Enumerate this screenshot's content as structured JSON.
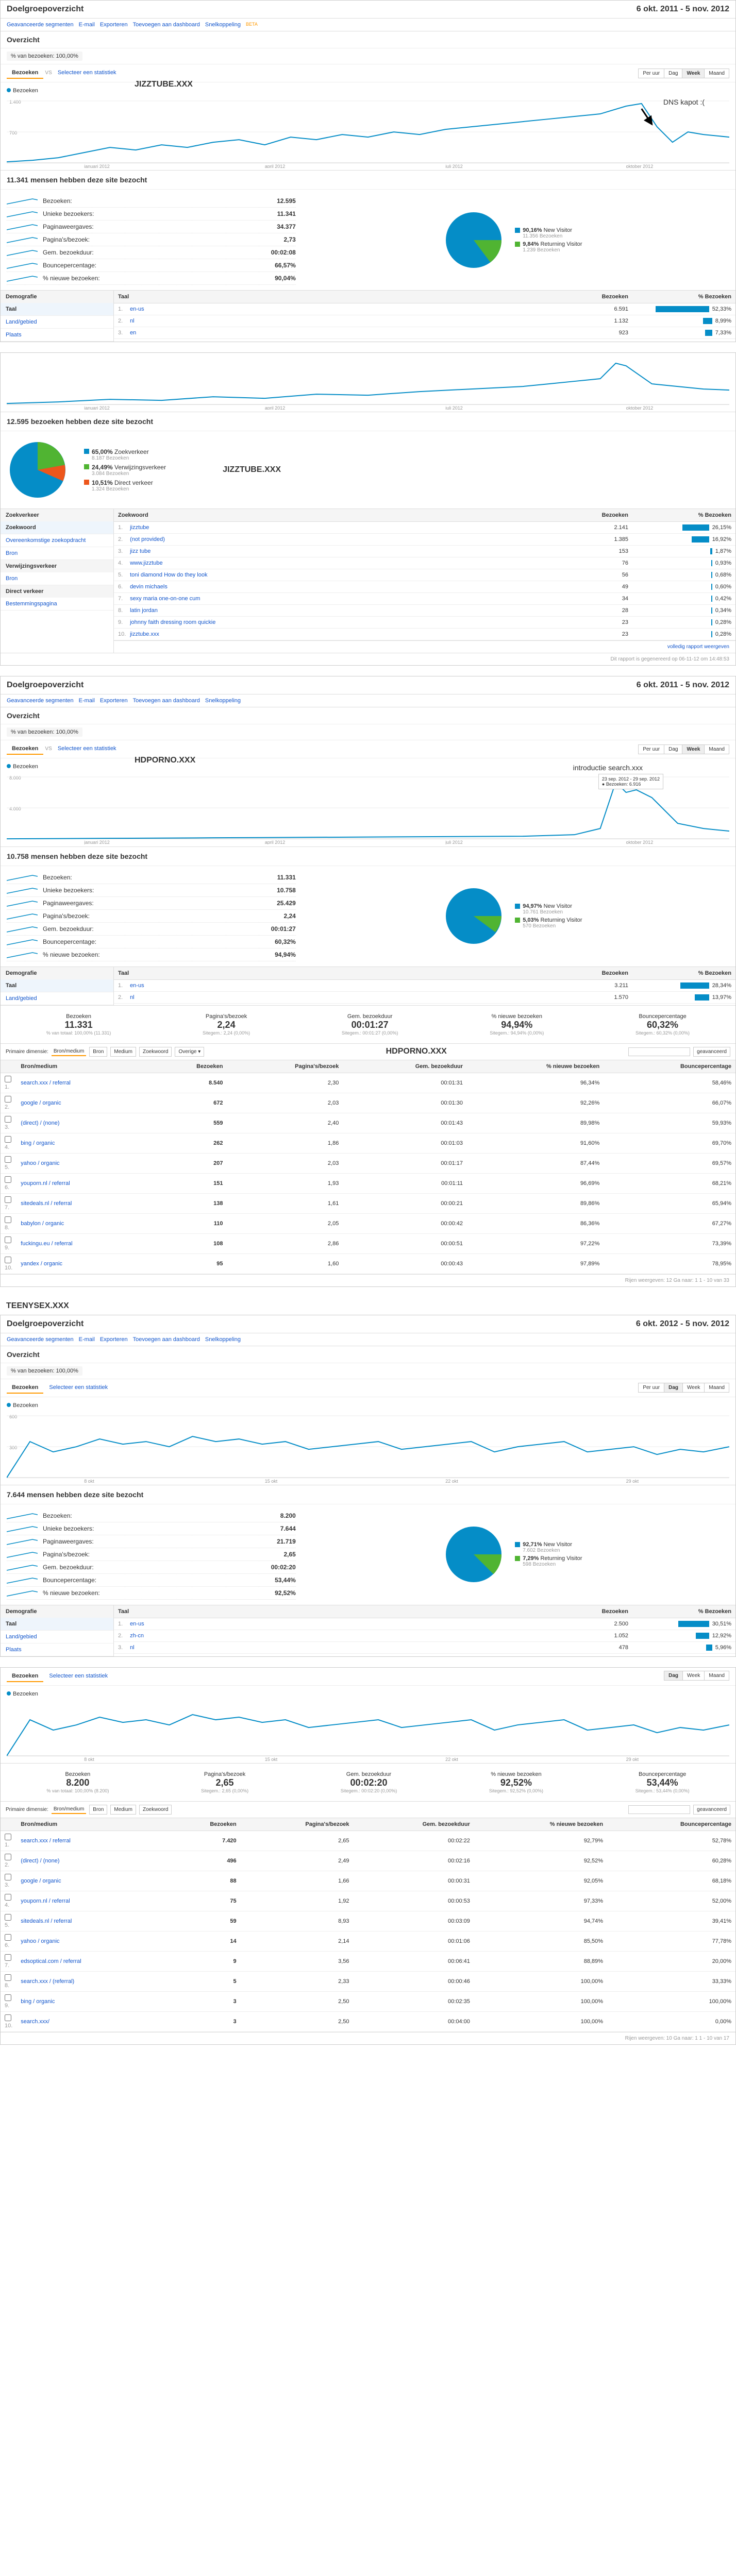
{
  "dateRangeLong": "6 okt. 2011 - 5 nov. 2012",
  "dateRangeShort": "6 okt. 2012 - 5 nov. 2012",
  "headerTitle": "Doelgroepoverzicht",
  "toolbar": {
    "seg": "Geavanceerde segmenten",
    "email": "E-mail",
    "export": "Exporteren",
    "dash": "Toevoegen aan dashboard",
    "snel": "Snelkoppeling",
    "beta": "BETA"
  },
  "overzicht": "Overzicht",
  "segLabel": "% van bezoeken: 100,00%",
  "tabBezoeken": "Bezoeken",
  "vs": "VS",
  "selectStat": "Selecteer een statistiek",
  "viewBtns": {
    "uur": "Per uur",
    "dag": "Dag",
    "week": "Week",
    "maand": "Maand"
  },
  "axisMonths": [
    "januari 2012",
    "april 2012",
    "juli 2012",
    "oktober 2012"
  ],
  "axisDays": [
    "8 okt",
    "15 okt",
    "22 okt",
    "29 okt"
  ],
  "colors": {
    "line": "#058dc7",
    "pie1": "#058dc7",
    "pie2": "#50b432",
    "pie3": "#ed561b",
    "grid": "#eeeeee"
  },
  "jizz": {
    "siteLabel": "JIZZTUBE.XXX",
    "annotation": "DNS kapot :(",
    "chartMax": "1.400",
    "chartMid": "700",
    "metricsHeader": "11.341 mensen hebben deze site bezocht",
    "metrics": [
      {
        "label": "Bezoeken:",
        "value": "12.595"
      },
      {
        "label": "Unieke bezoekers:",
        "value": "11.341"
      },
      {
        "label": "Paginaweergaves:",
        "value": "34.377"
      },
      {
        "label": "Pagina's/bezoek:",
        "value": "2,73"
      },
      {
        "label": "Gem. bezoekduur:",
        "value": "00:02:08"
      },
      {
        "label": "Bouncepercentage:",
        "value": "66,57%"
      },
      {
        "label": "% nieuwe bezoeken:",
        "value": "90,04%"
      }
    ],
    "pie": [
      {
        "color": "#058dc7",
        "pct": "90,16%",
        "label": "New Visitor",
        "sub": "11.356 Bezoeken"
      },
      {
        "color": "#50b432",
        "pct": "9,84%",
        "label": "Returning Visitor",
        "sub": "1.239 Bezoeken"
      }
    ],
    "demoHead": "Demografie",
    "demoItems": [
      "Taal",
      "Land/gebied",
      "Plaats"
    ],
    "langHead": [
      "Taal",
      "Bezoeken",
      "% Bezoeken"
    ],
    "langs": [
      {
        "idx": "1",
        "name": "en-us",
        "visits": "6.591",
        "pct": "52,33%",
        "barW": 52
      },
      {
        "idx": "2",
        "name": "nl",
        "visits": "1.132",
        "pct": "8,99%",
        "barW": 9
      },
      {
        "idx": "3",
        "name": "en",
        "visits": "923",
        "pct": "7,33%",
        "barW": 7
      }
    ],
    "trafficHeader": "12.595 bezoeken hebben deze site bezocht",
    "trafficPie": [
      {
        "color": "#058dc7",
        "pct": "65,00%",
        "label": "Zoekverkeer",
        "sub": "8.187 Bezoeken"
      },
      {
        "color": "#50b432",
        "pct": "24,49%",
        "label": "Verwijzingsverkeer",
        "sub": "3.084 Bezoeken"
      },
      {
        "color": "#ed561b",
        "pct": "10,51%",
        "label": "Direct verkeer",
        "sub": "1.324 Bezoeken"
      }
    ],
    "srcHead": "Zoekverkeer",
    "srcItems": [
      "Zoekwoord",
      "Overeenkomstige zoekopdracht",
      "Bron"
    ],
    "srcHead2": "Verwijzingsverkeer",
    "srcItems2": [
      "Bron"
    ],
    "srcHead3": "Direct verkeer",
    "srcItems3": [
      "Bestemmingspagina"
    ],
    "kwHead": [
      "Zoekwoord",
      "Bezoeken",
      "% Bezoeken"
    ],
    "keywords": [
      {
        "idx": "1",
        "name": "jizztube",
        "visits": "2.141",
        "pct": "26,15%",
        "barW": 26
      },
      {
        "idx": "2",
        "name": "(not provided)",
        "visits": "1.385",
        "pct": "16,92%",
        "barW": 17
      },
      {
        "idx": "3",
        "name": "jizz tube",
        "visits": "153",
        "pct": "1,87%",
        "barW": 2
      },
      {
        "idx": "4",
        "name": "www.jizztube",
        "visits": "76",
        "pct": "0,93%",
        "barW": 1
      },
      {
        "idx": "5",
        "name": "toni diamond How do they look",
        "visits": "56",
        "pct": "0,68%",
        "barW": 1
      },
      {
        "idx": "6",
        "name": "devin michaels",
        "visits": "49",
        "pct": "0,60%",
        "barW": 1
      },
      {
        "idx": "7",
        "name": "sexy maria one-on-one cum",
        "visits": "34",
        "pct": "0,42%",
        "barW": 1
      },
      {
        "idx": "8",
        "name": "latin jordan",
        "visits": "28",
        "pct": "0,34%",
        "barW": 1
      },
      {
        "idx": "9",
        "name": "johnny faith dressing room quickie",
        "visits": "23",
        "pct": "0,28%",
        "barW": 1
      },
      {
        "idx": "10",
        "name": "jizztube.xxx",
        "visits": "23",
        "pct": "0,28%",
        "barW": 1
      }
    ],
    "reportLink": "volledig rapport weergeven",
    "genNote": "Dit rapport is gegenereerd op 06-11-12 om 14:48:53"
  },
  "hdporno": {
    "siteLabel": "HDPORNO.XXX",
    "annotation": "introductie search.xxx",
    "annotationBox": "23 sep. 2012 - 29 sep. 2012\\n● Bezoeken: 6.916",
    "chartMax": "8.000",
    "chartMid": "4.000",
    "metricsHeader": "10.758 mensen hebben deze site bezocht",
    "metrics": [
      {
        "label": "Bezoeken:",
        "value": "11.331"
      },
      {
        "label": "Unieke bezoekers:",
        "value": "10.758"
      },
      {
        "label": "Paginaweergaves:",
        "value": "25.429"
      },
      {
        "label": "Pagina's/bezoek:",
        "value": "2,24"
      },
      {
        "label": "Gem. bezoekduur:",
        "value": "00:01:27"
      },
      {
        "label": "Bouncepercentage:",
        "value": "60,32%"
      },
      {
        "label": "% nieuwe bezoeken:",
        "value": "94,94%"
      }
    ],
    "pie": [
      {
        "color": "#058dc7",
        "pct": "94,97%",
        "label": "New Visitor",
        "sub": "10.761 Bezoeken"
      },
      {
        "color": "#50b432",
        "pct": "5,03%",
        "label": "Returning Visitor",
        "sub": "570 Bezoeken"
      }
    ],
    "langs": [
      {
        "idx": "1",
        "name": "en-us",
        "visits": "3.211",
        "pct": "28,34%",
        "barW": 28
      },
      {
        "idx": "2",
        "name": "nl",
        "visits": "1.570",
        "pct": "13,97%",
        "barW": 14
      }
    ],
    "summary": [
      {
        "label": "Bezoeken",
        "big": "11.331",
        "sub": "% van totaal: 100,00% (11.331)"
      },
      {
        "label": "Pagina's/bezoek",
        "big": "2,24",
        "sub": "Sitegem.: 2,24 (0,00%)"
      },
      {
        "label": "Gem. bezoekduur",
        "big": "00:01:27",
        "sub": "Sitegem.: 00:01:27 (0,00%)"
      },
      {
        "label": "% nieuwe bezoeken",
        "big": "94,94%",
        "sub": "Sitegem.: 94,94% (0,00%)"
      },
      {
        "label": "Bouncepercentage",
        "big": "60,32%",
        "sub": "Sitegem.: 60,32% (0,00%)"
      }
    ],
    "srcCols": [
      "Bron/medium",
      "Bezoeken",
      "Pagina's/bezoek",
      "Gem. bezoekduur",
      "% nieuwe bezoeken",
      "Bouncepercentage"
    ],
    "sources": [
      {
        "idx": "1",
        "name": "search.xxx / referral",
        "v": "8.540",
        "pb": "2,30",
        "gb": "00:01:31",
        "nb": "96,34%",
        "bp": "58,46%"
      },
      {
        "idx": "2",
        "name": "google / organic",
        "v": "672",
        "pb": "2,03",
        "gb": "00:01:30",
        "nb": "92,26%",
        "bp": "66,07%"
      },
      {
        "idx": "3",
        "name": "(direct) / (none)",
        "v": "559",
        "pb": "2,40",
        "gb": "00:01:43",
        "nb": "89,98%",
        "bp": "59,93%"
      },
      {
        "idx": "4",
        "name": "bing / organic",
        "v": "262",
        "pb": "1,86",
        "gb": "00:01:03",
        "nb": "91,60%",
        "bp": "69,70%"
      },
      {
        "idx": "5",
        "name": "yahoo / organic",
        "v": "207",
        "pb": "2,03",
        "gb": "00:01:17",
        "nb": "87,44%",
        "bp": "69,57%"
      },
      {
        "idx": "6",
        "name": "youporn.nl / referral",
        "v": "151",
        "pb": "1,93",
        "gb": "00:01:11",
        "nb": "96,69%",
        "bp": "68,21%"
      },
      {
        "idx": "7",
        "name": "sitedeals.nl / referral",
        "v": "138",
        "pb": "1,61",
        "gb": "00:00:21",
        "nb": "89,86%",
        "bp": "65,94%"
      },
      {
        "idx": "8",
        "name": "babylon / organic",
        "v": "110",
        "pb": "2,05",
        "gb": "00:00:42",
        "nb": "86,36%",
        "bp": "67,27%"
      },
      {
        "idx": "9",
        "name": "fuckingu.eu / referral",
        "v": "108",
        "pb": "2,86",
        "gb": "00:00:51",
        "nb": "97,22%",
        "bp": "73,39%"
      },
      {
        "idx": "10",
        "name": "yandex / organic",
        "v": "95",
        "pb": "1,60",
        "gb": "00:00:43",
        "nb": "97,89%",
        "bp": "78,95%"
      }
    ],
    "pager": "Rijen weergeven: 12  Ga naar: 1   1 - 10 van 33"
  },
  "teeny": {
    "siteLabel": "TEENYSEX.XXX",
    "chartMax": "600",
    "chartMid": "300",
    "metricsHeader": "7.644 mensen hebben deze site bezocht",
    "metrics": [
      {
        "label": "Bezoeken:",
        "value": "8.200"
      },
      {
        "label": "Unieke bezoekers:",
        "value": "7.644"
      },
      {
        "label": "Paginaweergaves:",
        "value": "21.719"
      },
      {
        "label": "Pagina's/bezoek:",
        "value": "2,65"
      },
      {
        "label": "Gem. bezoekduur:",
        "value": "00:02:20"
      },
      {
        "label": "Bouncepercentage:",
        "value": "53,44%"
      },
      {
        "label": "% nieuwe bezoeken:",
        "value": "92,52%"
      }
    ],
    "pie": [
      {
        "color": "#058dc7",
        "pct": "92,71%",
        "label": "New Visitor",
        "sub": "7.602 Bezoeken"
      },
      {
        "color": "#50b432",
        "pct": "7,29%",
        "label": "Returning Visitor",
        "sub": "598 Bezoeken"
      }
    ],
    "langs": [
      {
        "idx": "1",
        "name": "en-us",
        "visits": "2.500",
        "pct": "30,51%",
        "barW": 30
      },
      {
        "idx": "2",
        "name": "zh-cn",
        "visits": "1.052",
        "pct": "12,92%",
        "barW": 13
      },
      {
        "idx": "3",
        "name": "nl",
        "visits": "478",
        "pct": "5,96%",
        "barW": 6
      }
    ],
    "summary": [
      {
        "label": "Bezoeken",
        "big": "8.200",
        "sub": "% van totaal: 100,00% (8.200)"
      },
      {
        "label": "Pagina's/bezoek",
        "big": "2,65",
        "sub": "Sitegem.: 2,65 (0,00%)"
      },
      {
        "label": "Gem. bezoekduur",
        "big": "00:02:20",
        "sub": "Sitegem.: 00:02:20 (0,00%)"
      },
      {
        "label": "% nieuwe bezoeken",
        "big": "92,52%",
        "sub": "Sitegem.: 92,52% (0,00%)"
      },
      {
        "label": "Bouncepercentage",
        "big": "53,44%",
        "sub": "Sitegem.: 53,44% (0,00%)"
      }
    ],
    "sources": [
      {
        "idx": "1",
        "name": "search.xxx / referral",
        "v": "7.420",
        "pb": "2,65",
        "gb": "00:02:22",
        "nb": "92,79%",
        "bp": "52,78%"
      },
      {
        "idx": "2",
        "name": "(direct) / (none)",
        "v": "496",
        "pb": "2,49",
        "gb": "00:02:16",
        "nb": "92,52%",
        "bp": "60,28%"
      },
      {
        "idx": "3",
        "name": "google / organic",
        "v": "88",
        "pb": "1,66",
        "gb": "00:00:31",
        "nb": "92,05%",
        "bp": "68,18%"
      },
      {
        "idx": "4",
        "name": "youporn.nl / referral",
        "v": "75",
        "pb": "1,92",
        "gb": "00:00:53",
        "nb": "97,33%",
        "bp": "52,00%"
      },
      {
        "idx": "5",
        "name": "sitedeals.nl / referral",
        "v": "59",
        "pb": "8,93",
        "gb": "00:03:09",
        "nb": "94,74%",
        "bp": "39,41%"
      },
      {
        "idx": "6",
        "name": "yahoo / organic",
        "v": "14",
        "pb": "2,14",
        "gb": "00:01:06",
        "nb": "85,50%",
        "bp": "77,78%"
      },
      {
        "idx": "7",
        "name": "edsoptical.com / referral",
        "v": "9",
        "pb": "3,56",
        "gb": "00:06:41",
        "nb": "88,89%",
        "bp": "20,00%"
      },
      {
        "idx": "8",
        "name": "search.xxx / (referral)",
        "v": "5",
        "pb": "2,33",
        "gb": "00:00:46",
        "nb": "100,00%",
        "bp": "33,33%"
      },
      {
        "idx": "9",
        "name": "bing / organic",
        "v": "3",
        "pb": "2,50",
        "gb": "00:02:35",
        "nb": "100,00%",
        "bp": "100,00%"
      },
      {
        "idx": "10",
        "name": "search.xxx/",
        "v": "3",
        "pb": "2,50",
        "gb": "00:04:00",
        "nb": "100,00%",
        "bp": "0,00%"
      }
    ],
    "pager": "Rijen weergeven: 10  Ga naar: 1   1 - 10 van 17"
  }
}
